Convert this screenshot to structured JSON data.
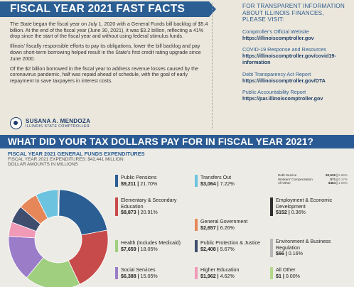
{
  "facts": {
    "title": "FISCAL YEAR 2021 FAST FACTS",
    "paragraphs": [
      "The State began the fiscal year on July 1, 2020 with a General Funds bill backlog of $5.4 billion. At the end of the fiscal year (June 30, 2021), it was $3.2 billion, reflecting a 41% drop since the start of the fiscal year and without using federal stimulus funds.",
      "Illinois' fiscally responsible efforts to pay its obligations, lower the bill backlog and pay down short-term borrowing helped result in the State's first credit rating upgrade since June 2000.",
      "Of the $2 billion borrowed in the fiscal year to address revenue losses caused by the coronavirus pandemic, half was repaid ahead of schedule, with the goal of early repayment to save taxpayers in interest costs."
    ],
    "signature_name": "SUSANA A. MENDOZA",
    "signature_title": "ILLINOIS STATE COMPTROLLER"
  },
  "info": {
    "heading": "FOR TRANSPARENT INFORMATION ABOUT ILLINOIS FINANCES, PLEASE VISIT:",
    "links": [
      {
        "label": "Comptroller's Official Website",
        "url": "https://illinoiscomptroller.gov"
      },
      {
        "label": "COVID-19 Response and Resources",
        "url": "https://illinoiscomptroller.gov/covid19-information"
      },
      {
        "label": "Debt Transparency Act Report",
        "url": "https://illinoiscomptroller.gov/DTA"
      },
      {
        "label": "Public Accountability Report",
        "url": "https://par.illinoiscomptroller.gov"
      }
    ]
  },
  "spending": {
    "question": "WHAT DID YOUR TAX DOLLARS PAY FOR IN FISCAL YEAR 2021?",
    "chart_title": "FISCAL YEAR 2021 GENERAL FUNDS EXPENDITURES",
    "chart_total": "FISCAL YEAR 2021 EXPENDITURES: $42,441 MILLION",
    "chart_units": "DOLLAR AMOUNTS IN MILLIONS"
  },
  "colors": {
    "pensions": "#2b5e93",
    "education": "#c84b4b",
    "health": "#9fcf7f",
    "social": "#9b7cc9",
    "higher_ed": "#f19ab8",
    "protection": "#3f4d6e",
    "general_gov": "#e6875a",
    "transfers": "#6cc3e0",
    "employment": "#2e2e2e",
    "environment": "#b7b7b7",
    "all_other": "#b3d889"
  },
  "chart_data": {
    "type": "pie",
    "title": "FISCAL YEAR 2021 GENERAL FUNDS EXPENDITURES",
    "subtitle": "FISCAL YEAR 2021 EXPENDITURES: $42,441 MILLION",
    "units": "DOLLAR AMOUNTS IN MILLIONS",
    "slices": [
      {
        "key": "pensions",
        "name": "Public Pensions",
        "value": 9211,
        "pct": "21.70%",
        "amount": "$9,211"
      },
      {
        "key": "education",
        "name": "Elementary & Secondary Education",
        "value": 8873,
        "pct": "20.91%",
        "amount": "$8,873"
      },
      {
        "key": "health",
        "name": "Health (Includes Medicaid)",
        "value": 7659,
        "pct": "18.05%",
        "amount": "$7,659"
      },
      {
        "key": "social",
        "name": "Social Services",
        "value": 6388,
        "pct": "15.05%",
        "amount": "$6,388"
      },
      {
        "key": "higher_ed",
        "name": "Higher Education",
        "value": 1962,
        "pct": "4.62%",
        "amount": "$1,962"
      },
      {
        "key": "protection",
        "name": "Public Protection & Justice",
        "value": 2408,
        "pct": "5.67%",
        "amount": "$2,408"
      },
      {
        "key": "general_gov",
        "name": "General Government",
        "value": 2657,
        "pct": "6.26%",
        "amount": "$2,657"
      },
      {
        "key": "transfers",
        "name": "Transfers Out",
        "value": 3064,
        "pct": "7.22%",
        "amount": "$3,064"
      },
      {
        "key": "employment",
        "name": "Employment & Economic Development",
        "value": 152,
        "pct": "0.36%",
        "amount": "$152"
      },
      {
        "key": "environment",
        "name": "Environment & Business Regulation",
        "value": 66,
        "pct": "0.16%",
        "amount": "$66"
      },
      {
        "key": "all_other",
        "name": "All Other",
        "value": 1,
        "pct": "0.00%",
        "amount": "$1"
      }
    ],
    "transfers_breakdown": [
      {
        "name": "Debt Service",
        "amount": "$2,529",
        "pct": "5.96%"
      },
      {
        "name": "Workers' Compensation",
        "amount": "$71",
        "pct": "0.17%"
      },
      {
        "name": "All Other",
        "amount": "$464",
        "pct": "1.09%"
      }
    ]
  }
}
